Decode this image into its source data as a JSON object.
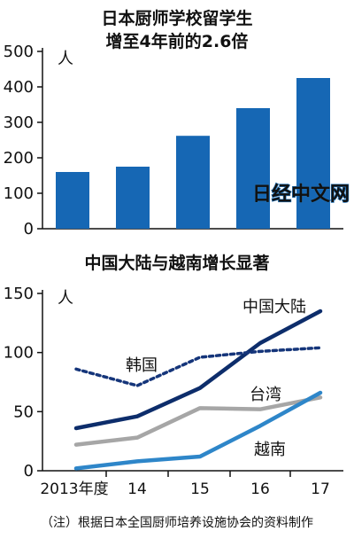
{
  "chart_data": [
    {
      "type": "bar",
      "title_lines": [
        "日本厨师学校留学生",
        "增至4年前的2.6倍"
      ],
      "unit": "人",
      "categories": [
        "2013年度",
        "14",
        "15",
        "16",
        "17"
      ],
      "values": [
        160,
        175,
        262,
        340,
        425
      ],
      "yticks": [
        0,
        100,
        200,
        300,
        400,
        500
      ],
      "ylim": [
        0,
        500
      ],
      "color": "#1667b4",
      "watermark": "日经中文网"
    },
    {
      "type": "line",
      "title": "中国大陆与越南增长显著",
      "unit": "人",
      "x": [
        "2013年度",
        "14",
        "15",
        "16",
        "17"
      ],
      "yticks": [
        0,
        50,
        100,
        150
      ],
      "ylim": [
        0,
        150
      ],
      "series": [
        {
          "name": "中国大陆",
          "values": [
            36,
            46,
            70,
            108,
            135
          ],
          "color": "#0d2d6b",
          "style": "solid"
        },
        {
          "name": "韩国",
          "values": [
            86,
            72,
            96,
            101,
            104
          ],
          "color": "#15357a",
          "style": "dotted"
        },
        {
          "name": "台湾",
          "values": [
            22,
            28,
            53,
            52,
            62
          ],
          "color": "#a6a6a6",
          "style": "solid"
        },
        {
          "name": "越南",
          "values": [
            2,
            8,
            12,
            38,
            66
          ],
          "color": "#2e86c9",
          "style": "solid"
        }
      ]
    }
  ],
  "footnote": "（注）根据日本全国厨师培养设施协会的资料制作"
}
